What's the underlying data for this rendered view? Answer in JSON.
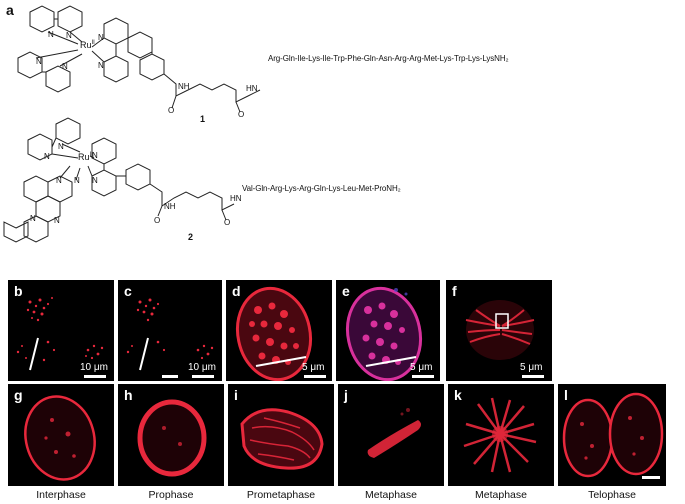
{
  "figure": {
    "panel_labels": {
      "a": "a",
      "b": "b",
      "c": "c",
      "d": "d",
      "e": "e",
      "f": "f",
      "g": "g",
      "h": "h",
      "i": "i",
      "j": "j",
      "k": "k",
      "l": "l"
    },
    "compound1": {
      "number": "1",
      "peptide": "Arg-Gln-Ile-Lys-Ile-Trp-Phe-Gln-Asn-Arg-Arg-Met-Lys-Trp-Lys-LysNH₂",
      "metal": "Ru",
      "oxidation": "II"
    },
    "compound2": {
      "number": "2",
      "peptide": "Val-Gln-Arg-Lys-Arg-Gln-Lys-Leu-Met-ProNH₂",
      "metal": "Ru",
      "oxidation": "II"
    },
    "atom_labels": {
      "N": "N",
      "NH": "NH",
      "HN": "HN",
      "O": "O"
    },
    "scale_bars": {
      "b": "10 μm",
      "c": "10 μm",
      "d": "5 μm",
      "e": "5 μm",
      "f": "5 μm"
    },
    "captions": {
      "g": "Interphase",
      "h": "Prophase",
      "i": "Prometaphase",
      "j": "Metaphase",
      "k": "Metaphase",
      "l": "Telophase"
    },
    "colors": {
      "stain_red": "#e8283c",
      "stain_magenta": "#d8309c",
      "stain_blue": "#5a4cd8",
      "background": "#000000"
    }
  }
}
